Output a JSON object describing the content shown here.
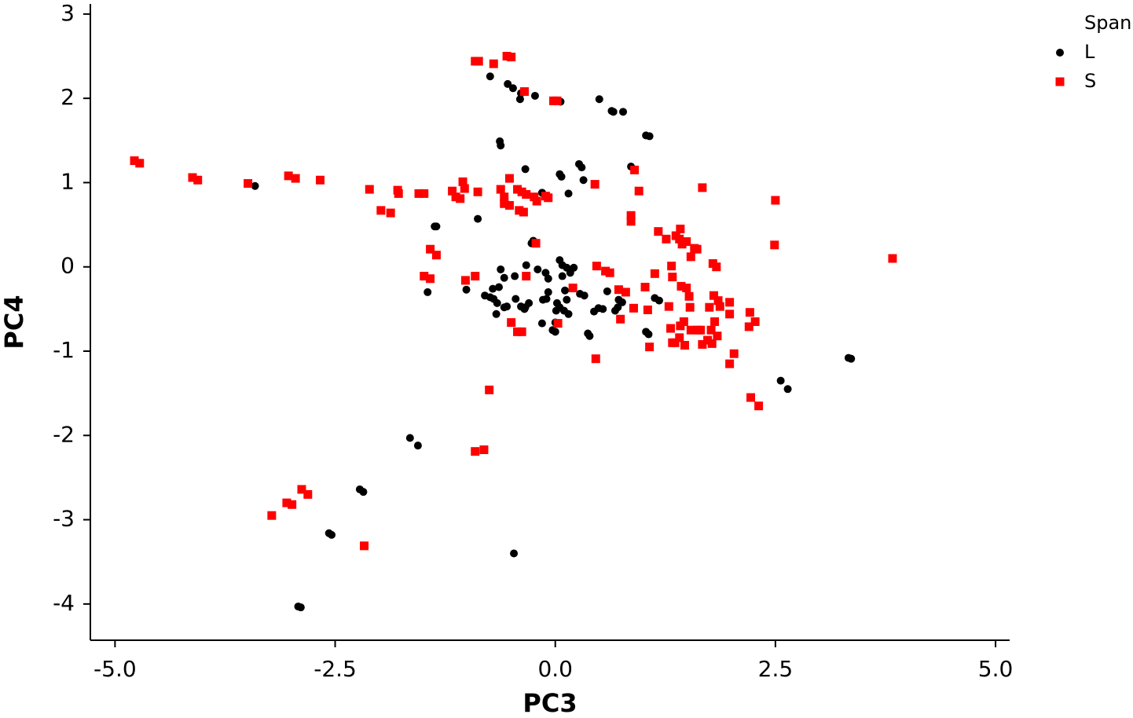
{
  "chart_data": {
    "type": "scatter",
    "x_label": "PC3",
    "y_label": "PC4",
    "legend_title": "Span",
    "xlim": [
      -5.28,
      5.16
    ],
    "ylim": [
      -4.43,
      3.12
    ],
    "xticks": [
      {
        "value": -5,
        "label": "-5.0"
      },
      -2.5,
      {
        "value": 0,
        "label": "0.0"
      },
      2.5,
      {
        "value": 5,
        "label": "5.0"
      }
    ],
    "yticks": [
      -4,
      -3,
      -2,
      -1,
      0,
      1,
      2,
      3
    ],
    "series": [
      {
        "name": "L",
        "color": "#000000",
        "marker": "circle",
        "x": [
          -0.74,
          -0.54,
          -0.48,
          -0.39,
          -0.4,
          -0.23,
          0.06,
          0.5,
          0.64,
          0.66,
          0.77,
          1.03,
          1.07,
          -0.63,
          -0.62,
          -0.34,
          0.27,
          0.3,
          0.05,
          0.07,
          0.32,
          0.15,
          0.86,
          -0.15,
          -0.88,
          -1.37,
          -1.35,
          -3.41,
          -0.25,
          -0.27,
          0.05,
          0.08,
          0.13,
          0.17,
          0.21,
          -0.62,
          -0.33,
          -0.2,
          -0.11,
          -0.08,
          0.08,
          -0.46,
          -0.58,
          -0.64,
          -0.71,
          -0.74,
          -0.7,
          -0.8,
          -0.66,
          -0.55,
          -0.58,
          -0.67,
          -0.45,
          -0.39,
          -0.34,
          -0.3,
          -0.35,
          -0.14,
          -0.1,
          -0.08,
          0.11,
          0.13,
          0.02,
          0.05,
          0.01,
          0.15,
          0.1,
          0.0,
          -0.15,
          0.0,
          -0.03,
          0.28,
          0.33,
          0.49,
          0.44,
          0.54,
          0.59,
          0.72,
          0.71,
          0.68,
          0.76,
          0.37,
          0.39,
          1.13,
          1.18,
          1.03,
          1.06,
          -1.01,
          -1.45,
          2.56,
          2.64,
          3.33,
          3.36,
          -1.65,
          -1.56,
          -2.22,
          -2.18,
          -2.57,
          -2.54,
          -0.47,
          -2.92,
          -2.89
        ],
        "y": [
          2.26,
          2.17,
          2.12,
          2.06,
          1.99,
          2.03,
          1.96,
          1.99,
          1.85,
          1.84,
          1.84,
          1.56,
          1.55,
          1.49,
          1.44,
          1.16,
          1.22,
          1.18,
          1.1,
          1.07,
          1.03,
          0.87,
          1.19,
          0.88,
          0.57,
          0.48,
          0.48,
          0.96,
          0.31,
          0.28,
          0.08,
          0.02,
          -0.01,
          -0.07,
          -0.01,
          -0.03,
          0.02,
          -0.03,
          -0.07,
          -0.14,
          -0.11,
          -0.11,
          -0.13,
          -0.24,
          -0.26,
          -0.36,
          -0.38,
          -0.34,
          -0.43,
          -0.47,
          -0.48,
          -0.56,
          -0.38,
          -0.47,
          -0.48,
          -0.43,
          -0.5,
          -0.39,
          -0.38,
          -0.3,
          -0.28,
          -0.39,
          -0.43,
          -0.48,
          -0.52,
          -0.56,
          -0.52,
          -0.66,
          -0.67,
          -0.77,
          -0.75,
          -0.32,
          -0.34,
          -0.49,
          -0.53,
          -0.5,
          -0.29,
          -0.39,
          -0.48,
          -0.52,
          -0.42,
          -0.79,
          -0.82,
          -0.37,
          -0.4,
          -0.77,
          -0.8,
          -0.27,
          -0.3,
          -1.35,
          -1.45,
          -1.08,
          -1.09,
          -2.03,
          -2.12,
          -2.64,
          -2.67,
          -3.16,
          -3.18,
          -3.4,
          -4.03,
          -4.04
        ]
      },
      {
        "name": "S",
        "color": "#ff0000",
        "marker": "square",
        "x": [
          -4.78,
          -4.72,
          -4.12,
          -4.06,
          -3.49,
          -3.03,
          -2.95,
          -2.67,
          -2.11,
          -1.98,
          -1.87,
          -1.79,
          -1.78,
          -1.55,
          -1.49,
          -1.17,
          -1.13,
          -1.08,
          -1.05,
          -1.03,
          -0.88,
          -0.62,
          -0.58,
          -0.58,
          -0.52,
          -0.52,
          -0.43,
          -0.41,
          -0.36,
          -0.38,
          -0.33,
          -0.24,
          -0.21,
          -0.11,
          -0.08,
          0.45,
          0.95,
          0.9,
          1.67,
          0.86,
          0.86,
          2.5,
          -0.91,
          -0.87,
          -0.7,
          -0.55,
          -0.5,
          -0.35,
          -0.02,
          0.02,
          -1.42,
          -1.35,
          -1.49,
          -1.42,
          -1.02,
          -0.91,
          -0.33,
          -0.22,
          0.03,
          -0.5,
          -0.43,
          -0.38,
          0.47,
          0.57,
          0.62,
          0.2,
          0.72,
          0.8,
          0.89,
          1.02,
          1.05,
          1.07,
          1.13,
          1.17,
          1.26,
          1.29,
          1.33,
          1.32,
          1.33,
          1.37,
          1.41,
          1.42,
          1.44,
          1.49,
          1.54,
          1.61,
          1.58,
          1.43,
          1.49,
          1.52,
          1.31,
          1.36,
          1.41,
          1.42,
          1.46,
          1.47,
          1.53,
          1.54,
          1.62,
          1.65,
          1.67,
          1.75,
          1.73,
          1.78,
          1.8,
          1.81,
          1.85,
          1.87,
          1.77,
          1.84,
          1.79,
          1.83,
          1.98,
          1.98,
          2.03,
          1.98,
          2.21,
          2.2,
          2.27,
          2.22,
          2.31,
          2.49,
          3.83,
          0.46,
          0.74,
          -0.75,
          -0.91,
          -0.81,
          -2.88,
          -2.81,
          -3.05,
          -2.99,
          -3.22,
          -2.17
        ],
        "y": [
          1.26,
          1.23,
          1.06,
          1.03,
          0.99,
          1.08,
          1.05,
          1.03,
          0.92,
          0.67,
          0.64,
          0.91,
          0.87,
          0.87,
          0.87,
          0.9,
          0.83,
          0.81,
          1.01,
          0.93,
          0.89,
          0.92,
          0.83,
          0.75,
          0.73,
          1.05,
          0.92,
          0.67,
          0.65,
          0.89,
          0.86,
          0.83,
          0.78,
          0.84,
          0.82,
          0.98,
          0.9,
          1.15,
          0.94,
          0.61,
          0.54,
          0.79,
          2.44,
          2.44,
          2.41,
          2.5,
          2.49,
          2.08,
          1.97,
          1.97,
          0.21,
          0.14,
          -0.11,
          -0.14,
          -0.16,
          -0.11,
          -0.11,
          0.28,
          -0.67,
          -0.66,
          -0.77,
          -0.77,
          0.01,
          -0.05,
          -0.07,
          -0.25,
          -0.27,
          -0.3,
          -0.49,
          -0.24,
          -0.51,
          -0.95,
          -0.08,
          0.42,
          0.33,
          -0.47,
          -0.9,
          0.01,
          -0.12,
          0.37,
          0.33,
          0.45,
          0.27,
          0.3,
          0.12,
          0.21,
          0.22,
          -0.23,
          -0.25,
          -0.35,
          -0.73,
          -0.9,
          -0.84,
          -0.7,
          -0.65,
          -0.93,
          -0.48,
          -0.75,
          -0.75,
          -0.75,
          -0.92,
          -0.48,
          -0.87,
          -0.91,
          -0.34,
          -0.65,
          -0.4,
          -0.47,
          -0.75,
          -0.82,
          0.04,
          0.0,
          -0.42,
          -0.56,
          -1.03,
          -1.15,
          -0.54,
          -0.71,
          -0.65,
          -1.55,
          -1.65,
          0.26,
          0.1,
          -1.09,
          -0.62,
          -1.46,
          -2.19,
          -2.17,
          -2.64,
          -2.7,
          -2.8,
          -2.82,
          -2.95,
          -3.31
        ]
      }
    ]
  }
}
